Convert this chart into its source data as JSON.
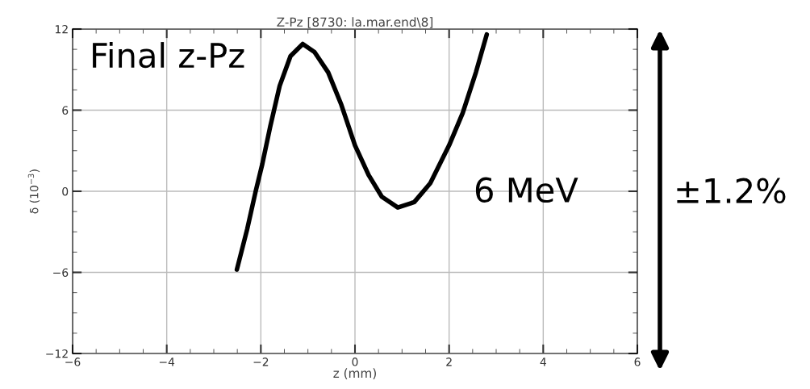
{
  "chart_data": {
    "type": "line",
    "title": "Z-Pz [8730: la.mar.end\\8]",
    "xlabel": "z (mm)",
    "ylabel": "δ (10$^{−3}$)",
    "x": [
      -2.51,
      -2.29,
      -2.11,
      -1.97,
      -1.8,
      -1.6,
      -1.37,
      -1.11,
      -0.86,
      -0.57,
      -0.29,
      0.0,
      0.29,
      0.57,
      0.91,
      1.26,
      1.6,
      2.0,
      2.29,
      2.57,
      2.8
    ],
    "series": [
      {
        "color": "#000000",
        "values": [
          -5.8,
          -2.8,
          0.0,
          2.0,
          4.8,
          7.8,
          10.0,
          10.9,
          10.3,
          8.8,
          6.4,
          3.4,
          1.2,
          -0.4,
          -1.2,
          -0.8,
          0.6,
          3.4,
          5.8,
          8.8,
          11.6
        ]
      }
    ],
    "xlim": [
      -6,
      6
    ],
    "xticks": [
      -6,
      -4,
      -2,
      0,
      2,
      4,
      6
    ],
    "ylim": [
      -12,
      12
    ],
    "yticks": [
      -12,
      -6,
      0,
      6,
      12
    ],
    "grid": true,
    "marker": "none",
    "line_style": "solid",
    "annotations": [
      "Final z-Pz",
      "6 MeV",
      "±1.2%"
    ]
  }
}
